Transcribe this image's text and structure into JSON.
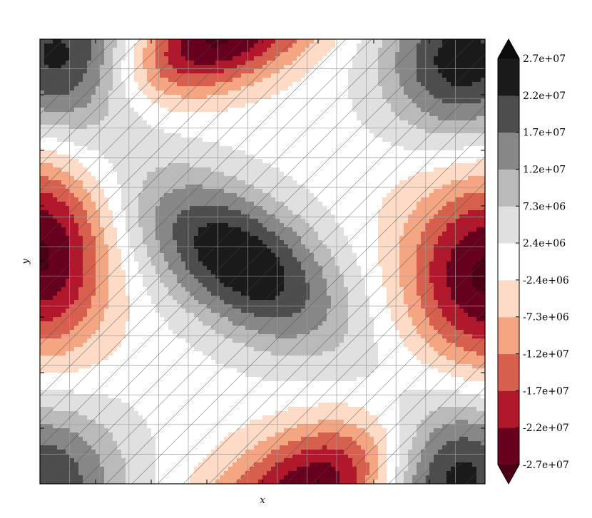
{
  "chart_data": {
    "type": "heatmap",
    "subtype": "filled-contour",
    "title": "",
    "xlabel": "x",
    "ylabel": "y",
    "x_range": [
      -3,
      3
    ],
    "y_range": [
      -3,
      3
    ],
    "axis_tick_labels": "none",
    "grid": true,
    "hatch": "diagonal '/' over the whole plot",
    "function_note": "sum of Gaussian blobs (saddle-like pattern)",
    "blobs": [
      {
        "x": -2.7,
        "y": 2.7,
        "sx": 0.75,
        "sy": 0.75,
        "amp": 25000000.0
      },
      {
        "x": 2.7,
        "y": 2.7,
        "sx": 0.75,
        "sy": 0.75,
        "amp": 25000000.0
      },
      {
        "x": -3.0,
        "y": -3.0,
        "sx": 0.8,
        "sy": 0.8,
        "amp": 22000000.0
      },
      {
        "x": 2.5,
        "y": -2.8,
        "sx": 0.8,
        "sy": 0.8,
        "amp": 28000000.0
      },
      {
        "x": -0.3,
        "y": 0.0,
        "sx": 1.1,
        "sy": 0.6,
        "rot": -35,
        "amp": 27000000.0
      },
      {
        "x": -0.6,
        "y": 3.0,
        "sx": 1.0,
        "sy": 0.45,
        "rot": 20,
        "amp": -28000000.0
      },
      {
        "x": 0.8,
        "y": -3.0,
        "sx": 1.1,
        "sy": 0.55,
        "rot": 25,
        "amp": -28000000.0
      },
      {
        "x": -3.0,
        "y": 0.1,
        "sx": 0.65,
        "sy": 0.95,
        "amp": -28000000.0
      },
      {
        "x": 3.0,
        "y": -0.2,
        "sx": 0.75,
        "sy": 0.95,
        "amp": -28000000.0
      }
    ],
    "levels": [
      -27000000.0,
      -22000000.0,
      -17000000.0,
      -12000000.0,
      -7300000.0,
      -2400000.0,
      2400000.0,
      7300000.0,
      12000000.0,
      17000000.0,
      22000000.0,
      27000000.0
    ],
    "colorbar": {
      "tick_labels": [
        "-2.7e+07",
        "-2.2e+07",
        "-1.7e+07",
        "-1.2e+07",
        "-7.3e+06",
        "-2.4e+06",
        "2.4e+06",
        "7.3e+06",
        "1.2e+07",
        "1.7e+07",
        "2.2e+07",
        "2.7e+07"
      ],
      "extend": "both",
      "colors": [
        "#67001f",
        "#b2182b",
        "#d6604d",
        "#f4a582",
        "#fddbc7",
        "#ffffff",
        "#e0e0e0",
        "#bababa",
        "#878787",
        "#4d4d4d",
        "#1a1a1a"
      ],
      "under_color": "#4b0014",
      "over_color": "#0d0d0d"
    }
  }
}
